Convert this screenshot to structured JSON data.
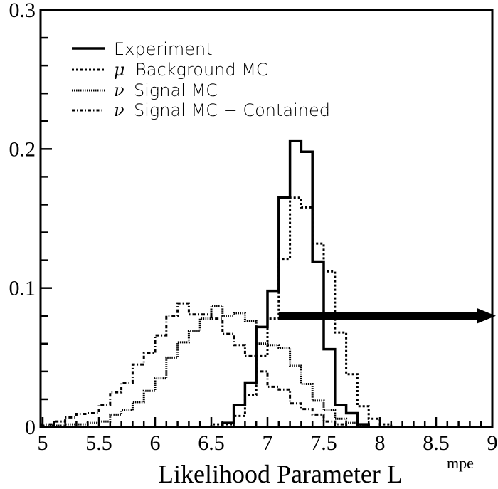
{
  "chart_data": {
    "type": "histogram",
    "title": "",
    "xlabel": "Likelihood Parameter L",
    "xlabel_superscript": "mpe",
    "ylabel": "",
    "xlim": [
      5,
      9
    ],
    "ylim": [
      0,
      0.3
    ],
    "x_ticks": [
      "5",
      "5.5",
      "6",
      "6.5",
      "7",
      "7.5",
      "8",
      "8.5",
      "9"
    ],
    "y_ticks": [
      "0",
      "0.1",
      "0.2",
      "0.3"
    ],
    "bin_width": 0.1,
    "legend_position": "top-left",
    "series": [
      {
        "name": "Experiment",
        "greek": "",
        "style": "solid",
        "bin_start": 6.6,
        "values": [
          0.003,
          0.016,
          0.032,
          0.072,
          0.098,
          0.165,
          0.206,
          0.198,
          0.119,
          0.056,
          0.016,
          0.01,
          0.002
        ]
      },
      {
        "name": "Background MC",
        "greek": "μ",
        "style": "dotted",
        "bin_start": 6.5,
        "values": [
          0.002,
          0.002,
          0.008,
          0.023,
          0.051,
          0.078,
          0.121,
          0.165,
          0.158,
          0.132,
          0.112,
          0.068,
          0.038,
          0.015,
          0.006,
          0.002
        ]
      },
      {
        "name": "Signal MC",
        "greek": "ν",
        "style": "fine-dotted",
        "bin_start": 5.0,
        "values": [
          0.001,
          0.001,
          0.002,
          0.002,
          0.003,
          0.004,
          0.009,
          0.012,
          0.018,
          0.026,
          0.035,
          0.05,
          0.061,
          0.069,
          0.078,
          0.087,
          0.08,
          0.082,
          0.076,
          0.06,
          0.059,
          0.057,
          0.044,
          0.031,
          0.019,
          0.012,
          0.006,
          0.003,
          0.001
        ]
      },
      {
        "name": "Signal MC − Contained",
        "greek": "ν",
        "style": "dash-dot",
        "bin_start": 5.0,
        "values": [
          0.002,
          0.004,
          0.007,
          0.0095,
          0.01,
          0.016,
          0.025,
          0.032,
          0.045,
          0.053,
          0.066,
          0.08,
          0.089,
          0.081,
          0.081,
          0.078,
          0.067,
          0.059,
          0.051,
          0.04,
          0.029,
          0.027,
          0.017,
          0.013,
          0.009,
          0.004,
          0.002
        ]
      }
    ],
    "annotations": [
      {
        "type": "arrow",
        "x_start": 7.1,
        "x_end": 9.0,
        "y": 0.08
      }
    ]
  }
}
